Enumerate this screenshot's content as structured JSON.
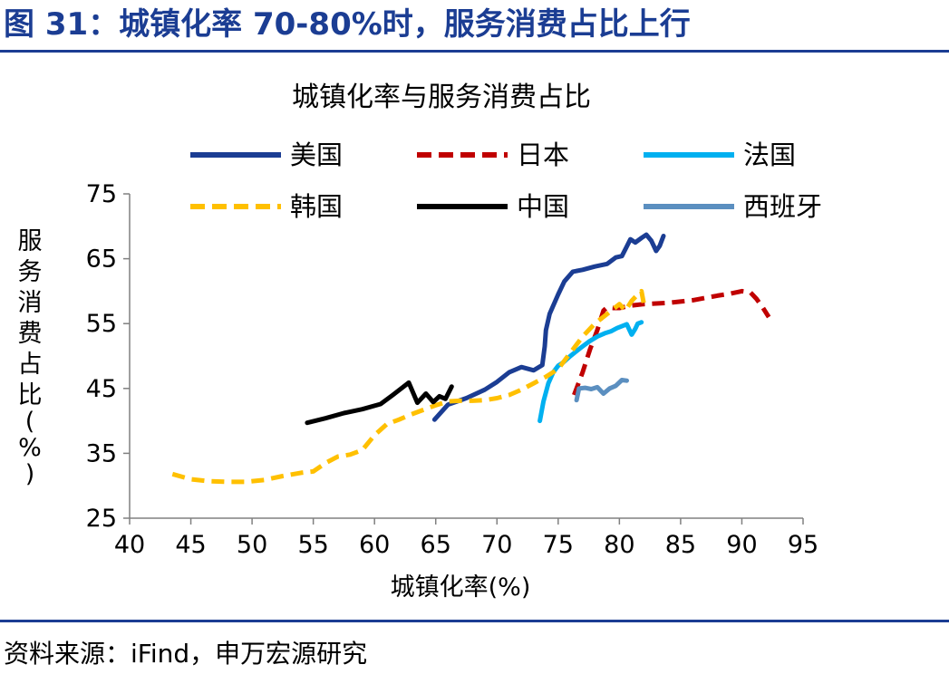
{
  "figure_title": "图 31：城镇化率 70-80%时，服务消费占比上行",
  "source": "资料来源：iFind，申万宏源研究",
  "chart_data": {
    "type": "line",
    "title": "城镇化率与服务消费占比",
    "xlabel": "城镇化率(%)",
    "ylabel": "服务消费占比(%)",
    "xlim": [
      40,
      95
    ],
    "ylim": [
      25,
      75
    ],
    "xticks": [
      40,
      45,
      50,
      55,
      60,
      65,
      70,
      75,
      80,
      85,
      90,
      95
    ],
    "yticks": [
      25,
      35,
      45,
      55,
      65,
      75
    ],
    "xtick_labels": [
      "40",
      "45",
      "50",
      "55",
      "60",
      "65",
      "70",
      "75",
      "80",
      "85",
      "90",
      "95"
    ],
    "ytick_labels": [
      "25",
      "35",
      "45",
      "55",
      "65",
      "75"
    ],
    "grid": false,
    "legend_position": "top",
    "series": [
      {
        "name": "美国",
        "color": "#1b3d93",
        "dash": "solid",
        "x": [
          64.9,
          66.0,
          67.5,
          69.0,
          70.0,
          71.0,
          72.0,
          73.0,
          73.7,
          73.9,
          74.0,
          74.3,
          75.0,
          75.5,
          76.2,
          77.0,
          78.0,
          79.0,
          79.7,
          80.2,
          80.5,
          80.9,
          81.3,
          81.8,
          82.2,
          82.6,
          83.0,
          83.3,
          83.6
        ],
        "y": [
          40.2,
          42.5,
          43.5,
          44.8,
          46.0,
          47.5,
          48.3,
          47.8,
          48.6,
          51.5,
          54.0,
          56.5,
          59.5,
          61.5,
          63.0,
          63.3,
          63.8,
          64.2,
          65.2,
          65.4,
          66.5,
          68.0,
          67.5,
          68.2,
          68.7,
          67.8,
          66.2,
          67.0,
          68.5
        ]
      },
      {
        "name": "日本",
        "color": "#c00000",
        "dash": "dashed",
        "x": [
          76.3,
          77.0,
          77.6,
          78.2,
          78.7,
          79.0,
          79.5,
          80.0,
          81.0,
          82.0,
          84.0,
          86.0,
          88.0,
          89.0,
          90.0,
          90.7,
          91.2,
          91.7,
          92.2
        ],
        "y": [
          44.0,
          47.5,
          51.0,
          54.0,
          57.0,
          57.5,
          57.4,
          57.4,
          57.8,
          58.0,
          58.2,
          58.6,
          59.3,
          59.6,
          60.0,
          59.8,
          58.8,
          57.5,
          56.0
        ]
      },
      {
        "name": "法国",
        "color": "#00b0f0",
        "dash": "solid",
        "x": [
          73.5,
          73.8,
          74.2,
          74.6,
          75.0,
          75.4,
          76.0,
          76.8,
          77.5,
          78.2,
          78.8,
          79.3,
          79.8,
          80.2,
          80.6,
          81.0,
          81.3,
          81.5,
          81.8
        ],
        "y": [
          40.0,
          43.0,
          45.8,
          47.5,
          48.5,
          49.0,
          50.0,
          51.2,
          52.2,
          53.0,
          53.5,
          53.8,
          54.3,
          54.6,
          54.9,
          53.3,
          54.2,
          55.0,
          55.2
        ]
      },
      {
        "name": "韩国",
        "color": "#ffc000",
        "dash": "dashed",
        "x": [
          43.5,
          45.0,
          46.5,
          48.0,
          49.5,
          51.0,
          52.5,
          54.0,
          55.0,
          56.0,
          57.0,
          58.0,
          59.0,
          60.0,
          61.0,
          62.0,
          63.0,
          64.0,
          65.0,
          66.0,
          67.0,
          68.0,
          69.0,
          70.0,
          71.0,
          72.0,
          73.0,
          74.0,
          75.0,
          76.0,
          77.0,
          78.0,
          79.0,
          80.0,
          80.5,
          81.0,
          81.5,
          81.8,
          82.0
        ],
        "y": [
          31.8,
          31.0,
          30.7,
          30.6,
          30.6,
          30.9,
          31.5,
          32.0,
          32.2,
          33.5,
          34.5,
          34.8,
          35.5,
          37.8,
          39.5,
          40.2,
          41.0,
          41.7,
          42.4,
          43.0,
          43.1,
          43.1,
          43.2,
          43.5,
          44.0,
          44.8,
          45.8,
          46.8,
          48.0,
          50.5,
          53.0,
          55.0,
          56.5,
          58.0,
          57.0,
          58.5,
          59.5,
          60.0,
          58.0
        ]
      },
      {
        "name": "中国",
        "color": "#000000",
        "dash": "solid",
        "x": [
          54.5,
          56.0,
          57.5,
          59.0,
          60.5,
          61.5,
          62.8,
          63.5,
          64.2,
          64.8,
          65.3,
          65.8,
          66.3
        ],
        "y": [
          39.7,
          40.4,
          41.2,
          41.8,
          42.6,
          44.0,
          45.9,
          42.8,
          44.2,
          42.9,
          43.8,
          43.4,
          45.3
        ]
      },
      {
        "name": "西班牙",
        "color": "#5b8fc0",
        "dash": "solid",
        "x": [
          76.5,
          76.7,
          77.2,
          77.7,
          78.2,
          78.7,
          79.2,
          79.7,
          80.2,
          80.6
        ],
        "y": [
          43.2,
          45.0,
          45.1,
          44.9,
          45.2,
          44.2,
          45.0,
          45.4,
          46.3,
          46.2
        ]
      }
    ]
  }
}
